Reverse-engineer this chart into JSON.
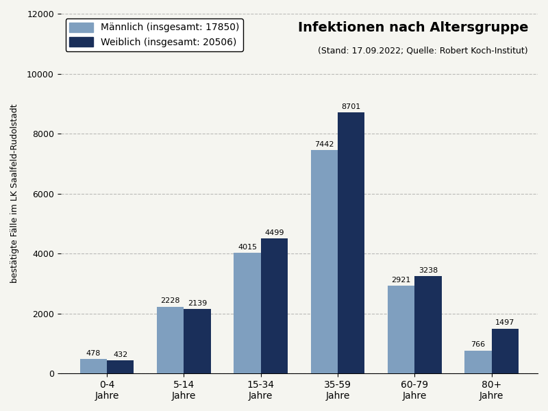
{
  "categories": [
    "0-4\nJahre",
    "5-14\nJahre",
    "15-34\nJahre",
    "35-59\nJahre",
    "60-79\nJahre",
    "80+\nJahre"
  ],
  "maennlich": [
    478,
    2228,
    4015,
    7442,
    2921,
    766
  ],
  "weiblich": [
    432,
    2139,
    4499,
    8701,
    3238,
    1497
  ],
  "color_maennlich": "#7f9fbf",
  "color_weiblich": "#1a2f5a",
  "title": "Infektionen nach Altersgruppe",
  "subtitle": "(Stand: 17.09.2022; Quelle: Robert Koch-Institut)",
  "ylabel": "bestätigte Fälle im LK Saalfeld-Rudolstadt",
  "legend_maennlich": "Männlich",
  "legend_weiblich": "Weiblich",
  "total_maennlich": 17850,
  "total_weiblich": 20506,
  "ylim": [
    0,
    12000
  ],
  "yticks": [
    0,
    2000,
    4000,
    6000,
    8000,
    10000,
    12000
  ],
  "background_color": "#f5f5f0",
  "bar_width": 0.35,
  "title_fontsize": 14,
  "subtitle_fontsize": 9,
  "label_fontsize": 8,
  "legend_fontsize": 10,
  "ylabel_fontsize": 9
}
